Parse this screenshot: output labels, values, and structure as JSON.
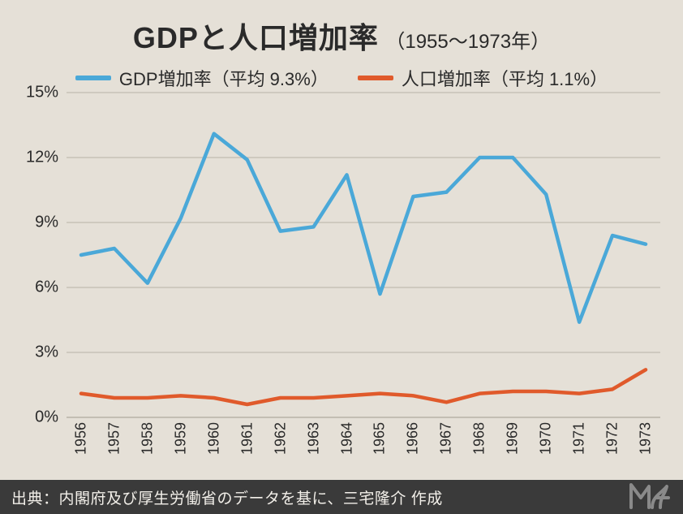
{
  "title": {
    "main": "GDPと人口増加率",
    "sub": "（1955〜1973年）",
    "fontsize_main": 36,
    "fontsize_sub": 24,
    "color": "#2a2a2a"
  },
  "legend": {
    "items": [
      {
        "label": "GDP増加率（平均 9.3%）",
        "color": "#4aa8d8"
      },
      {
        "label": "人口増加率（平均 1.1%）",
        "color": "#e05a2b"
      }
    ],
    "swatch_width": 44,
    "swatch_height": 6,
    "fontsize": 22
  },
  "chart": {
    "type": "line",
    "background_color": "#e5e0d7",
    "grid_color": "#b8b2a7",
    "axis_color": "#2a2a2a",
    "line_width": 4.5,
    "ylim": [
      0,
      15
    ],
    "ytick_step": 3,
    "yticks": [
      0,
      3,
      6,
      9,
      12,
      15
    ],
    "ytick_suffix": "%",
    "ylabel_fontsize": 20,
    "xlabel_fontsize": 18,
    "xlabel_rotation": -90,
    "years": [
      1956,
      1957,
      1958,
      1959,
      1960,
      1961,
      1962,
      1963,
      1964,
      1965,
      1966,
      1967,
      1968,
      1969,
      1970,
      1971,
      1972,
      1973
    ],
    "series": [
      {
        "name": "GDP増加率",
        "color": "#4aa8d8",
        "values": [
          7.5,
          7.8,
          6.2,
          9.2,
          13.1,
          11.9,
          8.6,
          8.8,
          11.2,
          5.7,
          10.2,
          10.4,
          12.0,
          12.0,
          10.3,
          4.4,
          8.4,
          8.0
        ]
      },
      {
        "name": "人口増加率",
        "color": "#e05a2b",
        "values": [
          1.1,
          0.9,
          0.9,
          1.0,
          0.9,
          0.6,
          0.9,
          0.9,
          1.0,
          1.1,
          1.0,
          0.7,
          1.1,
          1.2,
          1.2,
          1.1,
          1.3,
          2.2
        ]
      }
    ]
  },
  "footer": {
    "text": "出典：内閣府及び厚生労働省のデータを基に、三宅隆介 作成",
    "background_color": "#3a3a3a",
    "text_color": "#f2efe9",
    "fontsize": 19
  },
  "logo_color": "#8a8a8a"
}
